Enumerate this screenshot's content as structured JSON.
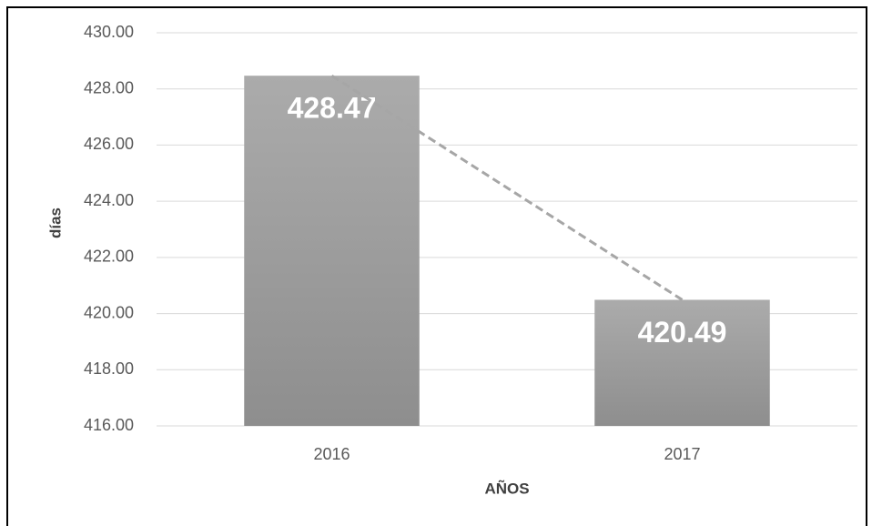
{
  "chart_data": {
    "type": "bar",
    "x_label": "AÑOS",
    "y_label": "días",
    "categories": [
      "2016",
      "2017"
    ],
    "values": [
      428.47,
      420.49
    ],
    "color": "#a6a6a6",
    "ylim": [
      416,
      430
    ],
    "yticks": [
      {
        "value": 416,
        "label": "416.00"
      },
      {
        "value": 418,
        "label": "418.00"
      },
      {
        "value": 420,
        "label": "420.00"
      },
      {
        "value": 422,
        "label": "422.00"
      },
      {
        "value": 424,
        "label": "424.00"
      },
      {
        "value": 426,
        "label": "426.00"
      },
      {
        "value": 428,
        "label": "428.00"
      },
      {
        "value": 430,
        "label": "430.00"
      }
    ],
    "grid": true,
    "trendline": true
  }
}
